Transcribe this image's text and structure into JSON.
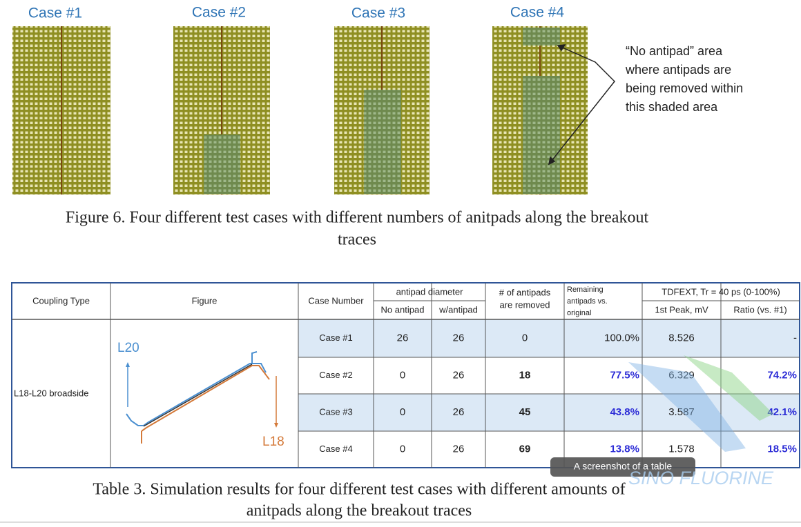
{
  "figure": {
    "cases": [
      "Case #1",
      "Case #2",
      "Case #3",
      "Case #4"
    ],
    "annotation": [
      "“No antipad” area",
      "where antipads are",
      "being removed within",
      "this shaded area"
    ],
    "caption": [
      "Figure 6.  Four different test cases with different numbers of anitpads along the breakout",
      "traces"
    ]
  },
  "table": {
    "headers": {
      "coupling_type": "Coupling Type",
      "figure": "Figure",
      "case_number": "Case Number",
      "antipad_diameter": "antipad diameter",
      "no_antipad": "No antipad",
      "w_antipad": "w/antipad",
      "removed": [
        "# of antipads",
        "are removed"
      ],
      "remaining": [
        "Remaining",
        "antipads vs.",
        "original"
      ],
      "tdfext": "TDFEXT, Tr = 40 ps (0-100%)",
      "first_peak": "1st Peak, mV",
      "ratio": "Ratio (vs. #1)"
    },
    "coupling_type": "L18-L20 broadside",
    "figure_labels": {
      "top": "L20",
      "bottom": "L18"
    },
    "rows": [
      [
        "Case #1",
        "26",
        "26",
        "0",
        "100.0%",
        "8.526",
        "-"
      ],
      [
        "Case #2",
        "0",
        "26",
        "18",
        "77.5%",
        "6.329",
        "74.2%"
      ],
      [
        "Case #3",
        "0",
        "26",
        "45",
        "43.8%",
        "3.587",
        "42.1%"
      ],
      [
        "Case #4",
        "0",
        "26",
        "69",
        "13.8%",
        "1.578",
        "18.5%"
      ]
    ],
    "caption": [
      "Table 3.  Simulation results for four different test cases with different amounts of",
      "anitpads along the breakout traces"
    ]
  },
  "tooltip": "A screenshot of a table",
  "watermark": "SINO FLUORINE"
}
